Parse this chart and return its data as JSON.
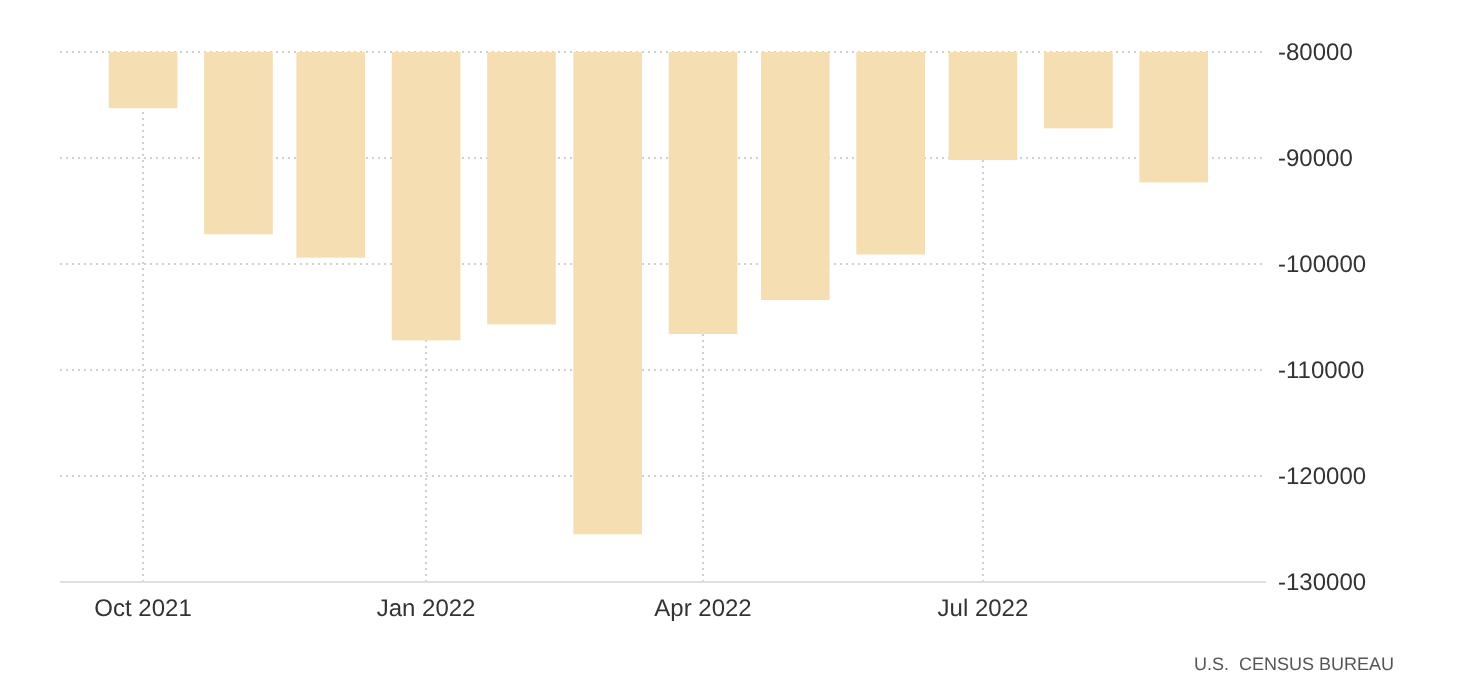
{
  "chart_data": {
    "type": "bar",
    "x": [
      "2021-10",
      "2021-11",
      "2021-12",
      "2022-01",
      "2022-02",
      "2022-03",
      "2022-04",
      "2022-05",
      "2022-06",
      "2022-07",
      "2022-08",
      "2022-09"
    ],
    "values": [
      -85300,
      -97200,
      -99400,
      -107200,
      -105700,
      -125500,
      -106600,
      -103400,
      -99100,
      -90200,
      -87200,
      -92300
    ],
    "color": "#f5dfb2",
    "xlim": [
      "2021-09-04",
      "2022-10-01"
    ],
    "xticks": [
      {
        "value": "2021-10",
        "label": "Oct 2021"
      },
      {
        "value": "2022-01",
        "label": "Jan 2022"
      },
      {
        "value": "2022-04",
        "label": "Apr 2022"
      },
      {
        "value": "2022-07",
        "label": "Jul 2022"
      }
    ],
    "ylim": [
      -130000,
      -80000
    ],
    "yticks": [
      -130000,
      -120000,
      -110000,
      -100000,
      -90000,
      -80000
    ],
    "grid": true,
    "annotations": [
      "U.S.  CENSUS BUREAU"
    ]
  }
}
